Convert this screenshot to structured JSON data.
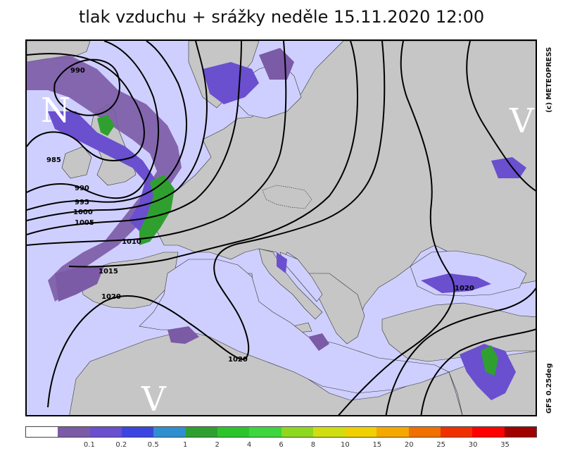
{
  "title": "tlak vzduchu + srážky  neděle 15.11.2020 12:00",
  "copyright": "(c) METEOPRESS",
  "model": "GFS 0.25deg",
  "pressure_labels": [
    "990",
    "985",
    "990",
    "995",
    "1000",
    "1005",
    "1010",
    "1015",
    "1020",
    "1020",
    "1020"
  ],
  "centers": {
    "low": "N",
    "high_east": "V",
    "high_south": "V"
  },
  "legend": {
    "colors": [
      "#ffffff",
      "#7b5aa6",
      "#6a4fcf",
      "#3b46e0",
      "#2f8fd0",
      "#2fa02f",
      "#2bc52b",
      "#3ed63e",
      "#8ed820",
      "#d0de10",
      "#f0d000",
      "#f5a800",
      "#f07000",
      "#f03000",
      "#ff0000",
      "#a00000"
    ],
    "labels": [
      "0.1",
      "0.2",
      "0.5",
      "1",
      "2",
      "4",
      "6",
      "8",
      "10",
      "15",
      "20",
      "25",
      "30",
      "35"
    ]
  },
  "colors": {
    "sea": "#cfcfff",
    "land": "#c6c6c6"
  }
}
